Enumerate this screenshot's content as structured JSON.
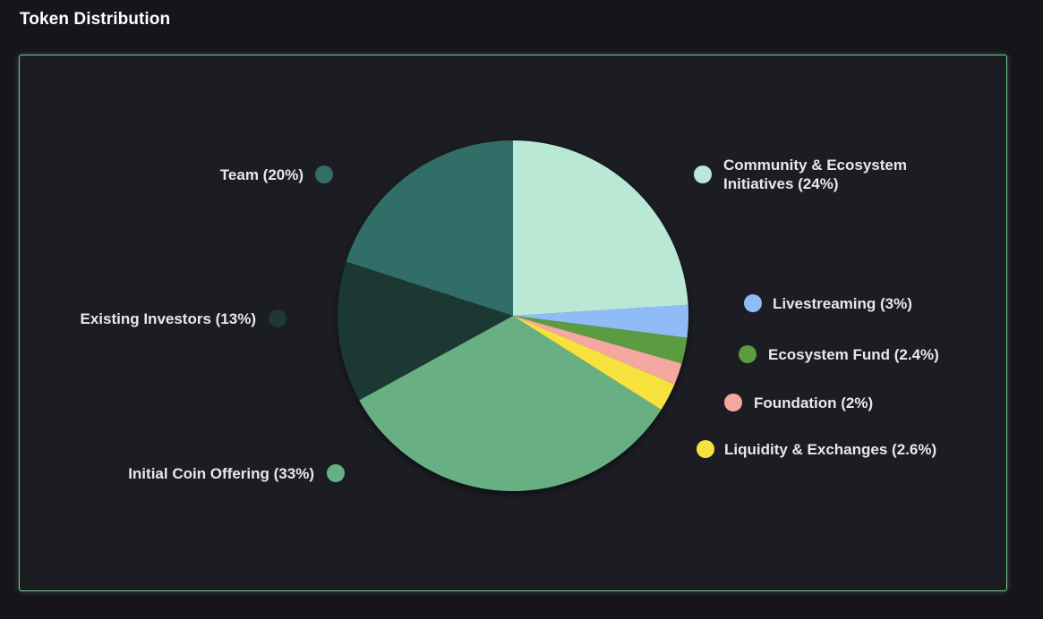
{
  "page": {
    "title": "Token Distribution"
  },
  "chart_data": {
    "type": "pie",
    "title": "",
    "slices": [
      {
        "label": "Community & Ecosystem Initiatives (24%)",
        "label_lines": [
          "Community & Ecosystem",
          "Initiatives (24%)"
        ],
        "value": 24,
        "color": "#b9e8d5"
      },
      {
        "label": "Livestreaming (3%)",
        "label_lines": [
          "Livestreaming (3%)"
        ],
        "value": 3,
        "color": "#8fbcf7"
      },
      {
        "label": "Ecosystem Fund (2.4%)",
        "label_lines": [
          "Ecosystem Fund (2.4%)"
        ],
        "value": 2.4,
        "color": "#5d9b3f"
      },
      {
        "label": "Foundation (2%)",
        "label_lines": [
          "Foundation (2%)"
        ],
        "value": 2,
        "color": "#f5a8a0"
      },
      {
        "label": "Liquidity & Exchanges (2.6%)",
        "label_lines": [
          "Liquidity & Exchanges (2.6%)"
        ],
        "value": 2.6,
        "color": "#f7e13c"
      },
      {
        "label": "Initial Coin Offering (33%)",
        "label_lines": [
          "Initial Coin Offering (33%)"
        ],
        "value": 33,
        "color": "#67b084"
      },
      {
        "label": "Existing Investors (13%)",
        "label_lines": [
          "Existing Investors (13%)"
        ],
        "value": 13,
        "color": "#1f3831"
      },
      {
        "label": "Team (20%)",
        "label_lines": [
          "Team (20%)"
        ],
        "value": 20,
        "color": "#336e67"
      }
    ],
    "start_angle_deg": 0,
    "direction": "clockwise",
    "legend_position": "around"
  }
}
